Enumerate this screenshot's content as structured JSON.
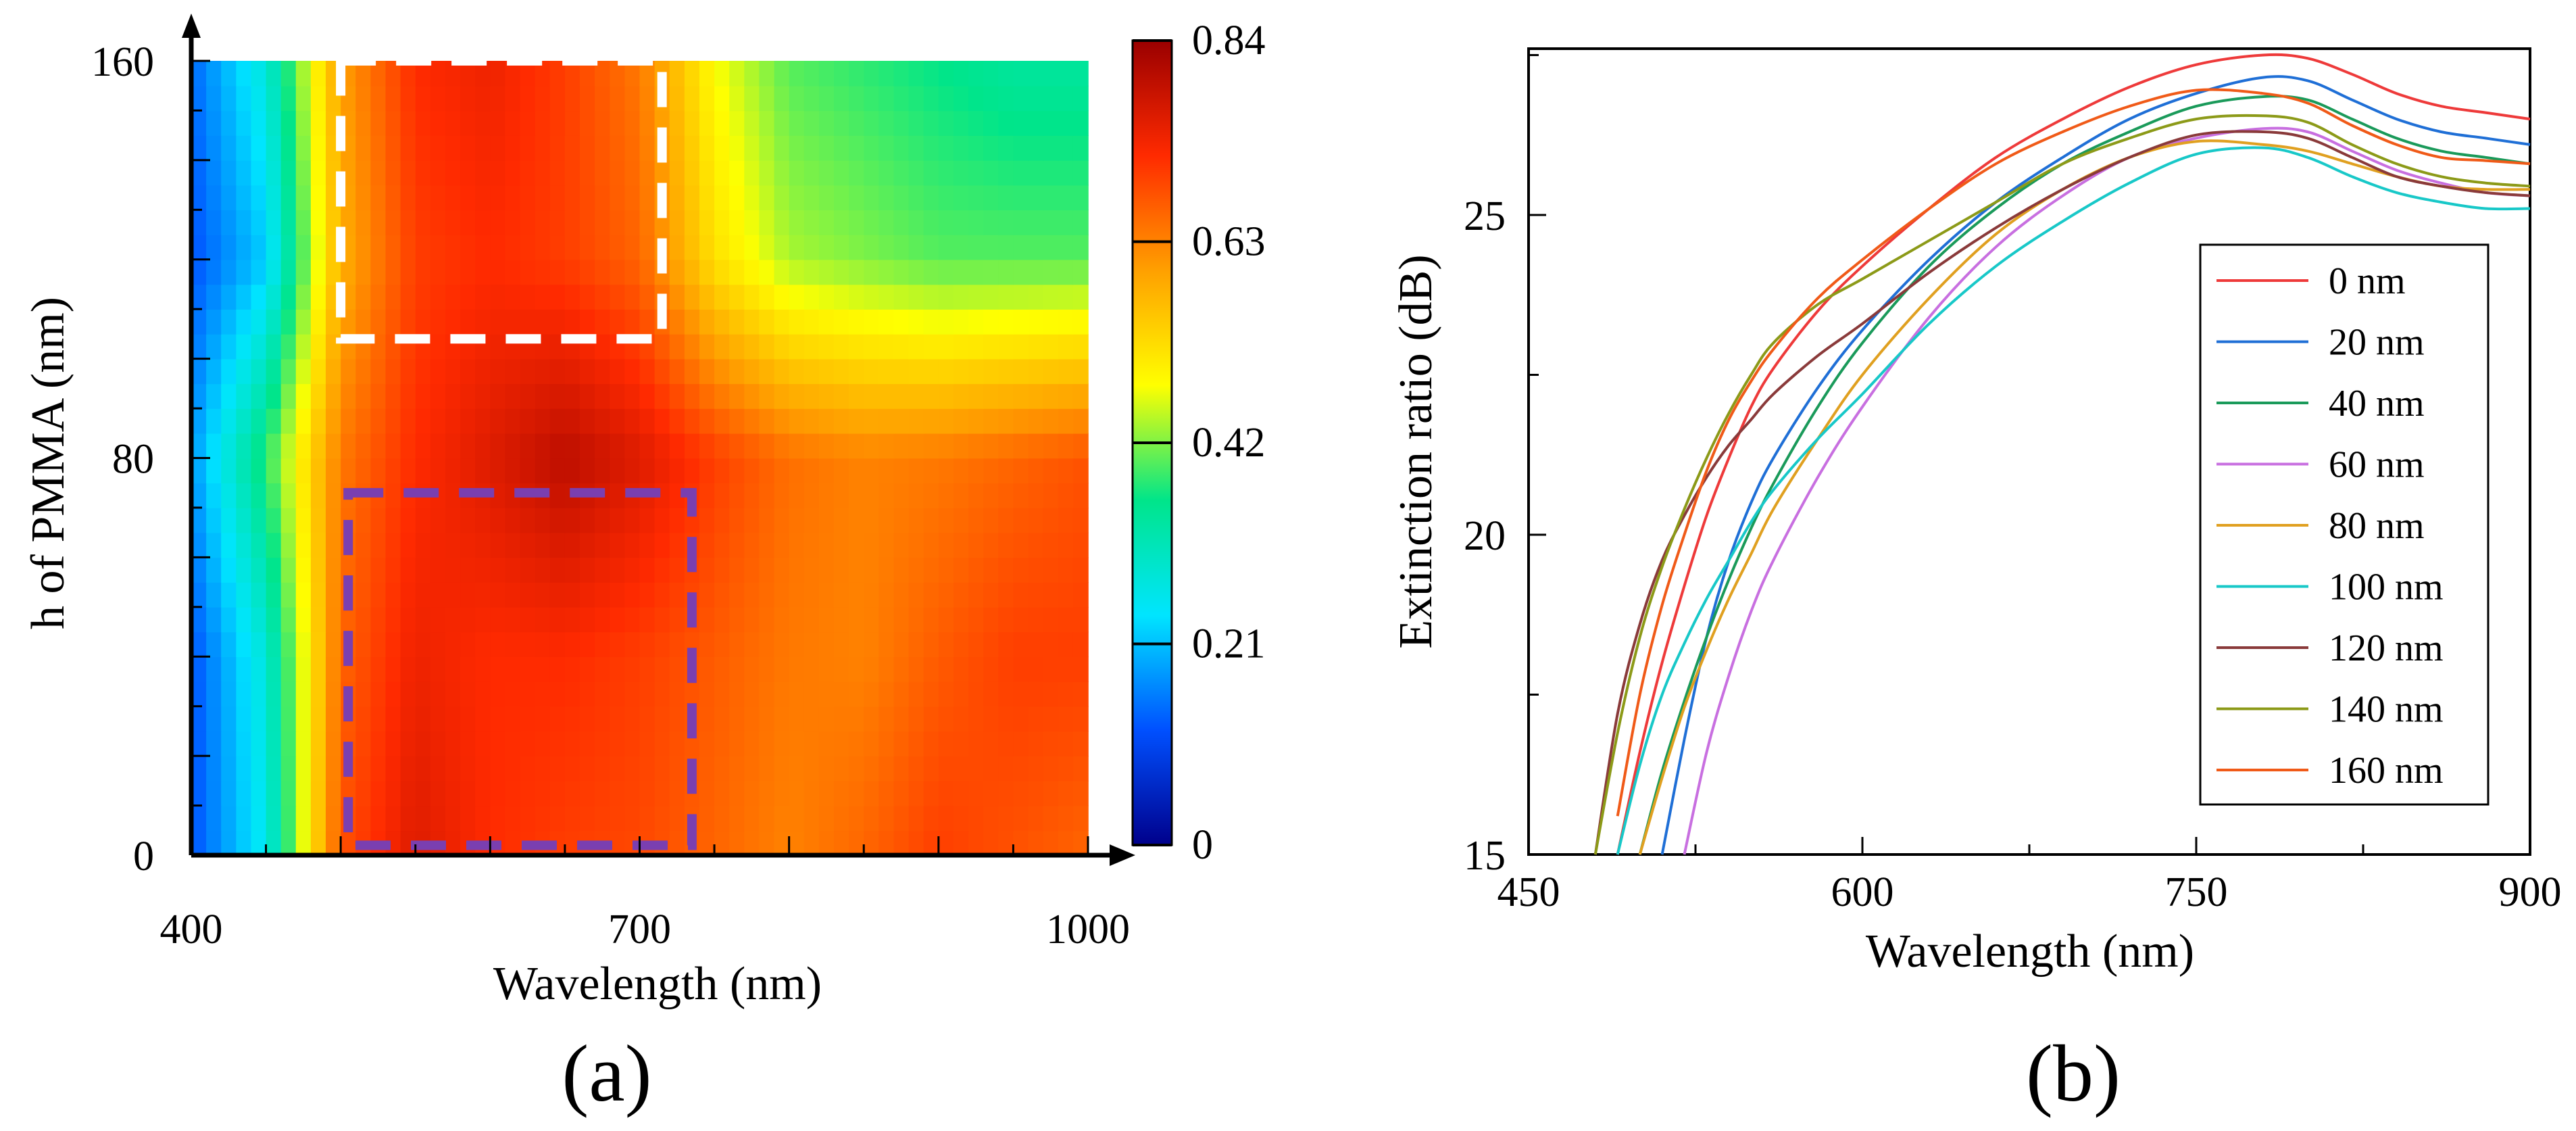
{
  "figure": {
    "panels": [
      {
        "id": "a",
        "label": "(a)"
      },
      {
        "id": "b",
        "label": "(b)"
      }
    ]
  },
  "chart_data": [
    {
      "type": "heatmap",
      "panel_label": "(a)",
      "title": "",
      "xlabel": "Wavelength (nm)",
      "ylabel": "h of PMMA  (nm)",
      "x_tick_labels": [
        "400",
        "700",
        "1000"
      ],
      "x_ticks": [
        400,
        700,
        1000
      ],
      "y_tick_labels": [
        "0",
        "80",
        "160"
      ],
      "y_ticks": [
        0,
        80,
        160
      ],
      "xlim": [
        400,
        1000
      ],
      "ylim": [
        0,
        160
      ],
      "colorbar": {
        "ticks": [
          0,
          0.21,
          0.42,
          0.63,
          0.84
        ],
        "tick_labels": [
          "0",
          "0.21",
          "0.42",
          "0.63",
          "0.84"
        ],
        "range": [
          0,
          0.84
        ],
        "colormap": [
          "#00008b",
          "#0050ff",
          "#00e5ff",
          "#00e58a",
          "#ffff00",
          "#ffa000",
          "#ff2a00",
          "#9a0000"
        ]
      },
      "approx_grid": {
        "x": [
          400,
          450,
          500,
          550,
          600,
          650,
          700,
          750,
          800,
          850,
          900,
          950,
          1000
        ],
        "y": [
          0,
          40,
          80,
          120,
          160
        ],
        "z": [
          [
            0.12,
            0.26,
            0.68,
            0.76,
            0.72,
            0.7,
            0.69,
            0.66,
            0.63,
            0.66,
            0.7,
            0.68,
            0.66
          ],
          [
            0.12,
            0.28,
            0.66,
            0.74,
            0.72,
            0.72,
            0.7,
            0.67,
            0.64,
            0.63,
            0.67,
            0.7,
            0.7
          ],
          [
            0.18,
            0.38,
            0.64,
            0.72,
            0.76,
            0.8,
            0.76,
            0.7,
            0.65,
            0.63,
            0.64,
            0.66,
            0.68
          ],
          [
            0.12,
            0.22,
            0.58,
            0.7,
            0.72,
            0.7,
            0.66,
            0.52,
            0.44,
            0.42,
            0.4,
            0.4,
            0.4
          ],
          [
            0.14,
            0.28,
            0.6,
            0.72,
            0.74,
            0.7,
            0.64,
            0.48,
            0.4,
            0.38,
            0.36,
            0.34,
            0.34
          ]
        ]
      },
      "highlight_boxes": [
        {
          "name": "white dashed box",
          "color": "#ffffff",
          "x_range": [
            500,
            715
          ],
          "y_range": [
            104,
            160
          ]
        },
        {
          "name": "purple dashed box",
          "color": "#7a3fb0",
          "x_range": [
            505,
            735
          ],
          "y_range": [
            2,
            73
          ]
        }
      ]
    },
    {
      "type": "line",
      "panel_label": "(b)",
      "title": "",
      "xlabel": "Wavelength (nm)",
      "ylabel": "Extinction ratio (dB)",
      "x_tick_labels": [
        "450",
        "600",
        "750",
        "900"
      ],
      "x_ticks": [
        450,
        600,
        750,
        900
      ],
      "y_tick_labels": [
        "15",
        "20",
        "25"
      ],
      "y_ticks": [
        15,
        20,
        25
      ],
      "xlim": [
        450,
        900
      ],
      "ylim": [
        15,
        27.6
      ],
      "legend_position": "right",
      "x": [
        480,
        490,
        500,
        510,
        520,
        530,
        540,
        550,
        560,
        580,
        600,
        630,
        660,
        690,
        720,
        750,
        780,
        800,
        820,
        840,
        860,
        880,
        900
      ],
      "series": [
        {
          "name": "0 nm",
          "color": "#ee3a3a",
          "values": [
            null,
            15.0,
            16.6,
            18.0,
            19.2,
            20.3,
            21.2,
            22.0,
            22.6,
            23.5,
            24.2,
            25.1,
            25.9,
            26.5,
            27.0,
            27.35,
            27.5,
            27.45,
            27.2,
            26.9,
            26.7,
            26.6,
            26.5
          ]
        },
        {
          "name": "20 nm",
          "color": "#1f6fd6",
          "values": [
            null,
            null,
            null,
            15.0,
            16.8,
            18.4,
            19.6,
            20.5,
            21.2,
            22.3,
            23.2,
            24.3,
            25.2,
            25.9,
            26.5,
            26.9,
            27.15,
            27.1,
            26.8,
            26.5,
            26.3,
            26.2,
            26.1
          ]
        },
        {
          "name": "40 nm",
          "color": "#1a9a5a",
          "values": [
            null,
            null,
            15.0,
            16.3,
            17.4,
            18.4,
            19.3,
            20.1,
            20.8,
            22.0,
            23.0,
            24.2,
            25.1,
            25.8,
            26.3,
            26.7,
            26.85,
            26.8,
            26.5,
            26.2,
            26.0,
            25.9,
            25.8
          ]
        },
        {
          "name": "60 nm",
          "color": "#c86fe0",
          "values": [
            null,
            null,
            null,
            null,
            15.0,
            16.6,
            17.8,
            18.8,
            19.6,
            20.9,
            22.0,
            23.4,
            24.5,
            25.3,
            25.9,
            26.2,
            26.35,
            26.3,
            26.0,
            25.7,
            25.5,
            25.35,
            25.3
          ]
        },
        {
          "name": "80 nm",
          "color": "#e0a020",
          "values": [
            null,
            null,
            15.0,
            16.2,
            17.3,
            18.2,
            19.0,
            19.7,
            20.4,
            21.5,
            22.5,
            23.7,
            24.7,
            25.4,
            25.9,
            26.15,
            26.1,
            26.0,
            25.8,
            25.6,
            25.45,
            25.4,
            25.4
          ]
        },
        {
          "name": "100 nm",
          "color": "#18c8c8",
          "values": [
            null,
            15.0,
            16.4,
            17.5,
            18.3,
            19.0,
            19.6,
            20.2,
            20.7,
            21.5,
            22.2,
            23.3,
            24.2,
            24.9,
            25.5,
            25.95,
            26.05,
            25.9,
            25.6,
            25.35,
            25.2,
            25.1,
            25.1
          ]
        },
        {
          "name": "120 nm",
          "color": "#8a3a3a",
          "values": [
            15.0,
            17.2,
            18.6,
            19.6,
            20.3,
            20.9,
            21.4,
            21.8,
            22.2,
            22.8,
            23.3,
            24.1,
            24.8,
            25.4,
            25.9,
            26.25,
            26.3,
            26.2,
            25.9,
            25.6,
            25.45,
            25.35,
            25.3
          ]
        },
        {
          "name": "140 nm",
          "color": "#8c9a18",
          "values": [
            15.0,
            16.9,
            18.4,
            19.5,
            20.4,
            21.2,
            21.9,
            22.5,
            23.0,
            23.6,
            24.0,
            24.6,
            25.2,
            25.8,
            26.2,
            26.5,
            26.55,
            26.45,
            26.1,
            25.8,
            25.6,
            25.5,
            25.45
          ]
        },
        {
          "name": "160 nm",
          "color": "#f05a18",
          "values": [
            null,
            15.6,
            17.5,
            18.9,
            20.0,
            21.0,
            21.8,
            22.4,
            22.9,
            23.7,
            24.3,
            25.1,
            25.8,
            26.3,
            26.7,
            26.95,
            26.9,
            26.75,
            26.4,
            26.1,
            25.9,
            25.85,
            25.8
          ]
        }
      ]
    }
  ]
}
